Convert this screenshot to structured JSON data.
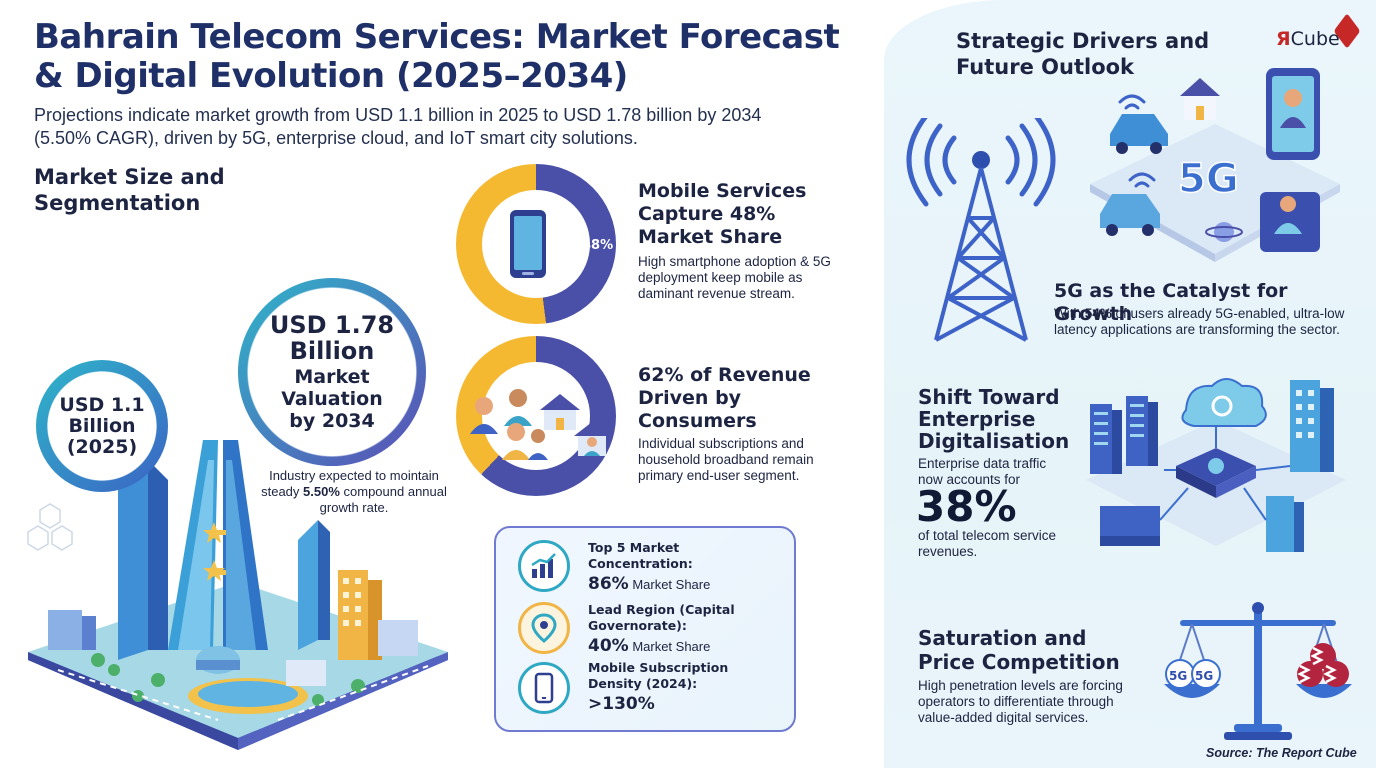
{
  "header": {
    "title": "Bahrain Telecom Services: Market Forecast & Digital Evolution (2025–2034)",
    "subtitle": "Projections indicate market growth from USD 1.1 billion in 2025 to USD 1.78 billion by 2034 (5.50% CAGR), driven by 5G, enterprise cloud, and IoT smart city solutions."
  },
  "market": {
    "heading": "Market Size and Segmentation",
    "small_circle": "USD 1.1 Billion (2025)",
    "big_circle_value": "USD 1.78 Billion",
    "big_circle_label": "Market Valuation by 2034",
    "growth_prefix": "Industry expected to mointain steady ",
    "growth_rate": "5.50%",
    "growth_suffix": " compound annual growth rate."
  },
  "mobile": {
    "percent_label": "48%",
    "share_fraction": 0.48,
    "title": "Mobile Services Capture 48% Market Share",
    "text": "High smartphone adoption & 5G deployment keep mobile as daminant revenue stream."
  },
  "consumers": {
    "share_fraction": 0.62,
    "title": "62% of Revenue Driven by Consumers",
    "text": "Individual subscriptions and household broadband remain primary end-user segment."
  },
  "stats": [
    {
      "label": "Top 5 Market Concentration:",
      "value": "86%",
      "unit": " Market Share",
      "icon": "bar-chart-icon"
    },
    {
      "label": "Lead Region (Capital Governorate):",
      "value": "40%",
      "unit": " Market Share",
      "icon": "map-pin-icon"
    },
    {
      "label": "Mobile Subscription Density (2024):",
      "value": ">130%",
      "unit": "",
      "icon": "phone-icon"
    }
  ],
  "right": {
    "heading": "Strategic Drivers and Future Outlook",
    "brand_r": "Я",
    "brand_rest": "Cube",
    "fiveg_badge": "5G",
    "catalyst_title": "5G as the Catalyst for Growth",
    "catalyst_prefix": "With ",
    "catalyst_bold": "54%",
    "catalyst_rest": " of users already 5G-enabled, ultra-low latency applications are transforming the sector.",
    "enterprise_title": "Shift Toward Enterprise Digitalisation",
    "enterprise_text1": "Enterprise data traffic now accounts for",
    "enterprise_big": "38%",
    "enterprise_text2": "of total telecom service revenues.",
    "saturation_title": "Saturation and Price Competition",
    "saturation_text": "High penetration levels are forcing operators to differentiate through value-added digital services.",
    "scale_badge_left": "5G",
    "scale_badge_right": "5G"
  },
  "source": "Source: The Report Cube",
  "colors": {
    "navy": "#1f3068",
    "purple": "#4a4fa7",
    "yellow": "#f5b931",
    "teal": "#2fb6c9",
    "brand_red": "#c62828"
  }
}
